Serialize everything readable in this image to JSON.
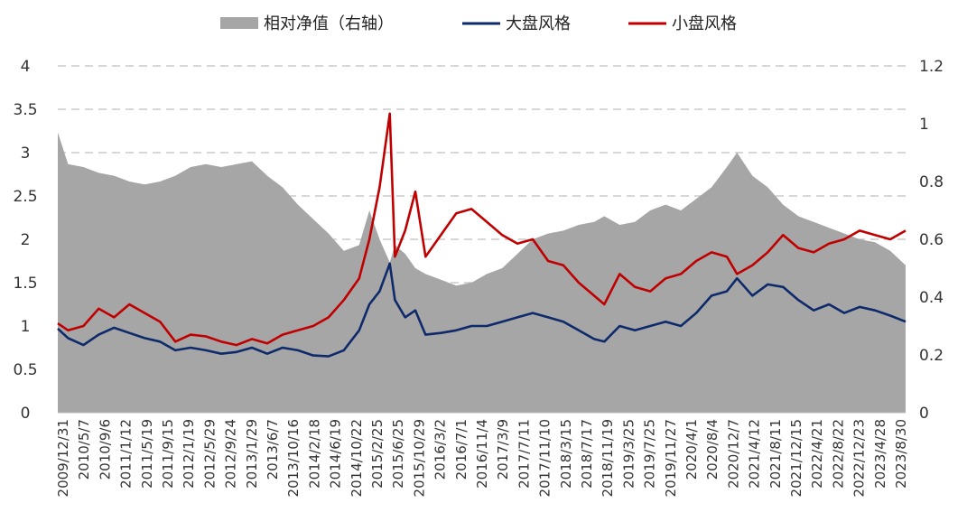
{
  "chart_data": {
    "type": "line",
    "title": "",
    "xlabel": "",
    "ylabel": "",
    "legend": {
      "placement": "top-center",
      "items": [
        {
          "key": "relative",
          "label": "相对净值（右轴）",
          "swatch": "area"
        },
        {
          "key": "large",
          "label": "大盘风格",
          "swatch": "line"
        },
        {
          "key": "small",
          "label": "小盘风格",
          "swatch": "line"
        }
      ]
    },
    "y_left": {
      "min": 0,
      "max": 4,
      "ticks": [
        "0",
        "0.5",
        "1",
        "1.5",
        "2",
        "2.5",
        "3",
        "3.5",
        "4"
      ]
    },
    "y_right": {
      "min": 0,
      "max": 1.2,
      "ticks": [
        "0",
        "0.2",
        "0.4",
        "0.6",
        "0.8",
        "1",
        "1.2"
      ]
    },
    "grid": "dashed-horizontal",
    "x_tick_labels": [
      "2009/12/31",
      "2010/5/7",
      "2010/9/6",
      "2011/1/12",
      "2011/5/19",
      "2011/9/15",
      "2012/1/19",
      "2012/5/29",
      "2012/9/24",
      "2013/1/29",
      "2013/6/7",
      "2013/10/16",
      "2014/2/18",
      "2014/6/19",
      "2014/10/22",
      "2015/2/25",
      "2015/6/25",
      "2015/10/29",
      "2016/3/2",
      "2016/7/1",
      "2016/11/4",
      "2017/3/9",
      "2017/7/11",
      "2017/11/10",
      "2018/3/15",
      "2018/7/17",
      "2018/11/19",
      "2019/3/25",
      "2019/7/25",
      "2019/11/27",
      "2020/4/1",
      "2020/8/4",
      "2020/12/7",
      "2021/4/12",
      "2021/8/11",
      "2021/12/15",
      "2022/4/21",
      "2022/8/22",
      "2022/12/23",
      "2023/4/28",
      "2023/8/30"
    ],
    "x": [
      "2009-12-31",
      "2010-03",
      "2010-06",
      "2010-09",
      "2010-12",
      "2011-03",
      "2011-06",
      "2011-09",
      "2011-12",
      "2012-03",
      "2012-06",
      "2012-09",
      "2012-12",
      "2013-03",
      "2013-06",
      "2013-09",
      "2013-12",
      "2014-03",
      "2014-06",
      "2014-09",
      "2014-12",
      "2015-02",
      "2015-04",
      "2015-06",
      "2015-07",
      "2015-09",
      "2015-11",
      "2016-01",
      "2016-04",
      "2016-07",
      "2016-10",
      "2017-01",
      "2017-04",
      "2017-07",
      "2017-10",
      "2018-01",
      "2018-04",
      "2018-07",
      "2018-10",
      "2018-12",
      "2019-03",
      "2019-06",
      "2019-09",
      "2019-12",
      "2020-03",
      "2020-06",
      "2020-09",
      "2020-12",
      "2021-02",
      "2021-05",
      "2021-08",
      "2021-11",
      "2022-02",
      "2022-05",
      "2022-08",
      "2022-11",
      "2023-02",
      "2023-05",
      "2023-08",
      "2023-11"
    ],
    "series": [
      {
        "key": "large",
        "name": "大盘风格",
        "color": "#0e2a6b",
        "axis": "left",
        "values": [
          0.97,
          0.86,
          0.78,
          0.9,
          0.98,
          0.92,
          0.86,
          0.82,
          0.72,
          0.75,
          0.72,
          0.68,
          0.7,
          0.75,
          0.68,
          0.75,
          0.72,
          0.66,
          0.65,
          0.72,
          0.95,
          1.25,
          1.4,
          1.72,
          1.3,
          1.1,
          1.18,
          0.9,
          0.92,
          0.95,
          1.0,
          1.0,
          1.05,
          1.1,
          1.15,
          1.1,
          1.05,
          0.95,
          0.85,
          0.82,
          1.0,
          0.95,
          1.0,
          1.05,
          1.0,
          1.15,
          1.35,
          1.4,
          1.55,
          1.35,
          1.48,
          1.45,
          1.3,
          1.18,
          1.25,
          1.15,
          1.22,
          1.18,
          1.12,
          1.05
        ]
      },
      {
        "key": "small",
        "name": "小盘风格",
        "color": "#c00000",
        "axis": "left",
        "values": [
          1.03,
          0.95,
          1.0,
          1.2,
          1.1,
          1.25,
          1.15,
          1.05,
          0.82,
          0.9,
          0.88,
          0.82,
          0.78,
          0.85,
          0.8,
          0.9,
          0.95,
          1.0,
          1.1,
          1.3,
          1.55,
          2.0,
          2.6,
          3.45,
          1.8,
          2.1,
          2.55,
          1.8,
          2.05,
          2.3,
          2.35,
          2.2,
          2.05,
          1.95,
          2.0,
          1.75,
          1.7,
          1.5,
          1.35,
          1.25,
          1.6,
          1.45,
          1.4,
          1.55,
          1.6,
          1.75,
          1.85,
          1.8,
          1.6,
          1.7,
          1.85,
          2.05,
          1.9,
          1.85,
          1.95,
          2.0,
          2.1,
          2.05,
          2.0,
          2.1
        ]
      },
      {
        "key": "relative",
        "name": "相对净值（右轴）",
        "color": "#a6a6a6",
        "axis": "right",
        "values": [
          0.97,
          0.86,
          0.85,
          0.83,
          0.82,
          0.8,
          0.79,
          0.8,
          0.82,
          0.85,
          0.86,
          0.85,
          0.86,
          0.87,
          0.82,
          0.78,
          0.72,
          0.67,
          0.62,
          0.56,
          0.58,
          0.7,
          0.6,
          0.52,
          0.58,
          0.55,
          0.5,
          0.48,
          0.46,
          0.44,
          0.45,
          0.48,
          0.5,
          0.55,
          0.6,
          0.62,
          0.63,
          0.65,
          0.66,
          0.68,
          0.65,
          0.66,
          0.7,
          0.72,
          0.7,
          0.74,
          0.78,
          0.85,
          0.9,
          0.82,
          0.78,
          0.72,
          0.68,
          0.66,
          0.64,
          0.62,
          0.6,
          0.59,
          0.56,
          0.51
        ]
      }
    ]
  }
}
